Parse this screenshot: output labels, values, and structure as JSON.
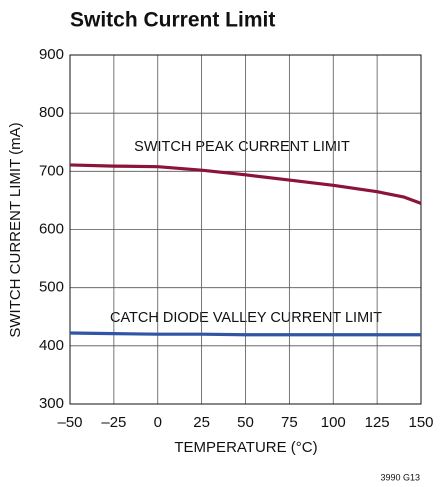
{
  "chart_data": {
    "type": "line",
    "title": "Switch Current Limit",
    "xlabel": "TEMPERATURE (°C)",
    "ylabel": "SWITCH CURRENT LIMIT (mA)",
    "annotations": [
      "SWITCH PEAK CURRENT LIMIT",
      "CATCH DIODE VALLEY CURRENT LIMIT"
    ],
    "note": "3990 G13",
    "x": [
      -50,
      -25,
      0,
      25,
      50,
      75,
      100,
      125,
      140,
      150
    ],
    "series": [
      {
        "name": "SWITCH PEAK CURRENT LIMIT",
        "color": "#8b1538",
        "values": [
          711,
          709,
          708,
          702,
          694,
          685,
          676,
          665,
          656,
          645
        ]
      },
      {
        "name": "CATCH DIODE VALLEY CURRENT LIMIT",
        "color": "#2f55a4",
        "values": [
          422,
          421,
          420,
          420,
          419,
          419,
          419,
          419,
          419,
          419
        ]
      }
    ],
    "xlim": [
      -50,
      150
    ],
    "xticks": [
      {
        "value": -50,
        "label": "–50"
      },
      {
        "value": -25,
        "label": "–25"
      },
      0,
      25,
      50,
      75,
      100,
      125,
      150
    ],
    "ylim": [
      300,
      900
    ],
    "yticks": [
      300,
      400,
      500,
      600,
      700,
      800,
      900
    ],
    "grid": true
  }
}
